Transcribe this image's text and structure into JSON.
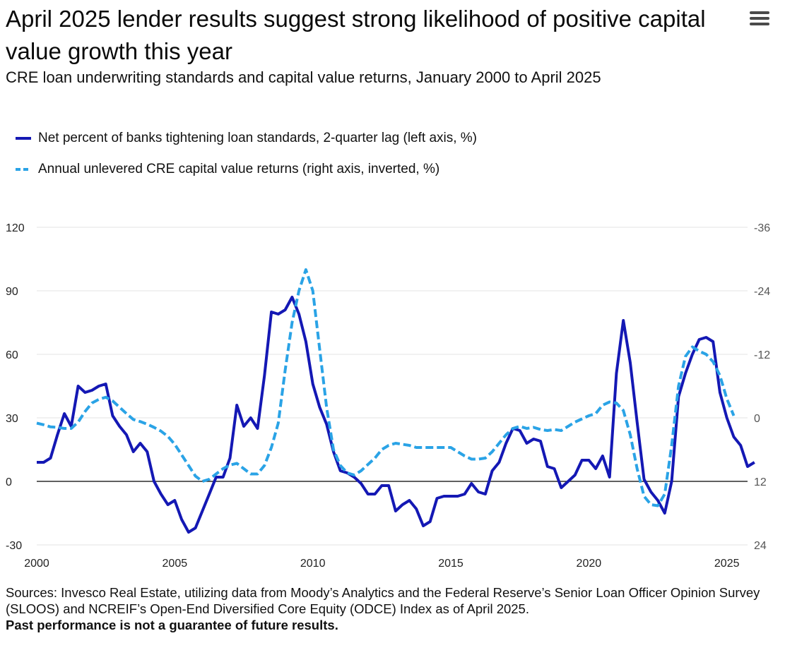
{
  "header": {
    "title": "April 2025 lender results suggest strong likelihood of positive capital value growth this year",
    "subtitle": "CRE loan underwriting standards and capital value returns, January 2000 to April 2025",
    "menu_icon": "hamburger-menu-icon"
  },
  "footer": {
    "sources": "Sources: Invesco Real Estate, utilizing data from Moody’s Analytics and the Federal Reserve’s Senior Loan Officer Opinion Survey (SLOOS) and NCREIF’s Open-End Diversified Core Equity (ODCE) Index as of April 2025.",
    "disclaimer": "Past performance is not a guarantee of future results."
  },
  "colors": {
    "series_solid": "#1418b4",
    "series_dashed": "#2aa3e6",
    "grid": "#e3e3e3",
    "zero_line": "#000000",
    "tick_left": "#222222",
    "tick_right": "#555555"
  },
  "chart_data": {
    "type": "line",
    "title": "April 2025 lender results suggest strong likelihood of positive capital value growth this year",
    "subtitle": "CRE loan underwriting standards and capital value returns, January 2000 to April 2025",
    "legend_position": "top-left",
    "grid": true,
    "x_axis": {
      "range": [
        2000,
        2025.75
      ],
      "ticks": [
        2000,
        2005,
        2010,
        2015,
        2020,
        2025
      ],
      "tick_labels": [
        "2000",
        "2005",
        "2010",
        "2015",
        "2020",
        "2025"
      ]
    },
    "y_left": {
      "range": [
        -30,
        120
      ],
      "ticks": [
        -30,
        0,
        30,
        60,
        90,
        120
      ],
      "tick_labels": [
        "-30",
        "0",
        "30",
        "60",
        "90",
        "120"
      ]
    },
    "y_right": {
      "inverted": true,
      "range": [
        24,
        -36
      ],
      "ticks": [
        24,
        12,
        0,
        -12,
        -24,
        -36
      ],
      "tick_labels": [
        "24",
        "12",
        "0",
        "-12",
        "-24",
        "-36"
      ]
    },
    "series": [
      {
        "name": "Net percent of banks tightening loan standards, 2-quarter lag (left axis, %)",
        "axis": "left",
        "style": "solid",
        "points": [
          [
            2000.0,
            9
          ],
          [
            2000.25,
            9
          ],
          [
            2000.5,
            11
          ],
          [
            2000.75,
            22
          ],
          [
            2001.0,
            32
          ],
          [
            2001.25,
            26
          ],
          [
            2001.5,
            45
          ],
          [
            2001.75,
            42
          ],
          [
            2002.0,
            43
          ],
          [
            2002.25,
            45
          ],
          [
            2002.5,
            46
          ],
          [
            2002.75,
            31
          ],
          [
            2003.0,
            26
          ],
          [
            2003.25,
            22
          ],
          [
            2003.5,
            14
          ],
          [
            2003.75,
            18
          ],
          [
            2004.0,
            14
          ],
          [
            2004.25,
            0
          ],
          [
            2004.5,
            -6
          ],
          [
            2004.75,
            -11
          ],
          [
            2005.0,
            -9
          ],
          [
            2005.25,
            -18
          ],
          [
            2005.5,
            -24
          ],
          [
            2005.75,
            -22
          ],
          [
            2006.0,
            -14
          ],
          [
            2006.25,
            -6
          ],
          [
            2006.5,
            2
          ],
          [
            2006.75,
            2
          ],
          [
            2007.0,
            11
          ],
          [
            2007.25,
            36
          ],
          [
            2007.5,
            26
          ],
          [
            2007.75,
            30
          ],
          [
            2008.0,
            25
          ],
          [
            2008.25,
            50
          ],
          [
            2008.5,
            80
          ],
          [
            2008.75,
            79
          ],
          [
            2009.0,
            81
          ],
          [
            2009.25,
            87
          ],
          [
            2009.5,
            79
          ],
          [
            2009.75,
            66
          ],
          [
            2010.0,
            46
          ],
          [
            2010.25,
            35
          ],
          [
            2010.5,
            27
          ],
          [
            2010.75,
            14
          ],
          [
            2011.0,
            5
          ],
          [
            2011.25,
            4
          ],
          [
            2011.5,
            2
          ],
          [
            2011.75,
            -1
          ],
          [
            2012.0,
            -6
          ],
          [
            2012.25,
            -6
          ],
          [
            2012.5,
            -2
          ],
          [
            2012.75,
            -2
          ],
          [
            2013.0,
            -14
          ],
          [
            2013.25,
            -11
          ],
          [
            2013.5,
            -9
          ],
          [
            2013.75,
            -13
          ],
          [
            2014.0,
            -21
          ],
          [
            2014.25,
            -19
          ],
          [
            2014.5,
            -8
          ],
          [
            2014.75,
            -7
          ],
          [
            2015.0,
            -7
          ],
          [
            2015.25,
            -7
          ],
          [
            2015.5,
            -6
          ],
          [
            2015.75,
            -1
          ],
          [
            2016.0,
            -5
          ],
          [
            2016.25,
            -6
          ],
          [
            2016.5,
            5
          ],
          [
            2016.75,
            9
          ],
          [
            2017.0,
            18
          ],
          [
            2017.25,
            25
          ],
          [
            2017.5,
            24
          ],
          [
            2017.75,
            18
          ],
          [
            2018.0,
            20
          ],
          [
            2018.25,
            19
          ],
          [
            2018.5,
            7
          ],
          [
            2018.75,
            6
          ],
          [
            2019.0,
            -3
          ],
          [
            2019.25,
            0
          ],
          [
            2019.5,
            3
          ],
          [
            2019.75,
            10
          ],
          [
            2020.0,
            10
          ],
          [
            2020.25,
            6
          ],
          [
            2020.5,
            12
          ],
          [
            2020.75,
            2
          ],
          [
            2021.0,
            51
          ],
          [
            2021.25,
            76
          ],
          [
            2021.5,
            56
          ],
          [
            2021.75,
            28
          ],
          [
            2022.0,
            1
          ],
          [
            2022.25,
            -5
          ],
          [
            2022.5,
            -9
          ],
          [
            2022.75,
            -15
          ],
          [
            2023.0,
            0
          ],
          [
            2023.25,
            40
          ],
          [
            2023.5,
            51
          ],
          [
            2023.75,
            60
          ],
          [
            2024.0,
            67
          ],
          [
            2024.25,
            68
          ],
          [
            2024.5,
            66
          ],
          [
            2024.75,
            42
          ],
          [
            2025.0,
            30
          ],
          [
            2025.25,
            21
          ],
          [
            2025.5,
            17
          ],
          [
            2025.75,
            7
          ],
          [
            2026.0,
            9
          ]
        ]
      },
      {
        "name": "Annual unlevered CRE capital value returns (right axis, inverted, %)",
        "axis": "right",
        "style": "dashed",
        "points": [
          [
            2000.0,
            1.0
          ],
          [
            2000.25,
            1.3
          ],
          [
            2000.5,
            1.7
          ],
          [
            2000.75,
            1.8
          ],
          [
            2001.0,
            2.0
          ],
          [
            2001.25,
            2.0
          ],
          [
            2001.5,
            0.8
          ],
          [
            2001.75,
            -1.2
          ],
          [
            2002.0,
            -2.8
          ],
          [
            2002.25,
            -3.5
          ],
          [
            2002.5,
            -3.9
          ],
          [
            2002.75,
            -3.2
          ],
          [
            2003.0,
            -2.0
          ],
          [
            2003.25,
            -0.8
          ],
          [
            2003.5,
            0.3
          ],
          [
            2003.75,
            0.7
          ],
          [
            2004.0,
            1.2
          ],
          [
            2004.25,
            1.8
          ],
          [
            2004.5,
            2.5
          ],
          [
            2004.75,
            3.5
          ],
          [
            2005.0,
            5.0
          ],
          [
            2005.25,
            7.0
          ],
          [
            2005.5,
            9.0
          ],
          [
            2005.75,
            11.0
          ],
          [
            2006.0,
            12.0
          ],
          [
            2006.25,
            11.6
          ],
          [
            2006.5,
            10.6
          ],
          [
            2006.75,
            9.6
          ],
          [
            2007.0,
            8.9
          ],
          [
            2007.25,
            8.6
          ],
          [
            2007.5,
            9.6
          ],
          [
            2007.75,
            10.6
          ],
          [
            2008.0,
            10.6
          ],
          [
            2008.25,
            9.0
          ],
          [
            2008.5,
            5.6
          ],
          [
            2008.75,
            1.0
          ],
          [
            2009.0,
            -9.0
          ],
          [
            2009.25,
            -18.0
          ],
          [
            2009.5,
            -24.0
          ],
          [
            2009.75,
            -28.0
          ],
          [
            2010.0,
            -24.0
          ],
          [
            2010.25,
            -13.0
          ],
          [
            2010.5,
            -2.0
          ],
          [
            2010.75,
            6.0
          ],
          [
            2011.0,
            9.0
          ],
          [
            2011.25,
            10.4
          ],
          [
            2011.5,
            10.8
          ],
          [
            2011.75,
            10.0
          ],
          [
            2012.0,
            8.8
          ],
          [
            2012.25,
            7.6
          ],
          [
            2012.5,
            6.0
          ],
          [
            2012.75,
            5.2
          ],
          [
            2013.0,
            4.8
          ],
          [
            2013.25,
            5.0
          ],
          [
            2013.5,
            5.2
          ],
          [
            2013.75,
            5.6
          ],
          [
            2014.0,
            5.6
          ],
          [
            2014.25,
            5.6
          ],
          [
            2014.5,
            5.6
          ],
          [
            2014.75,
            5.6
          ],
          [
            2015.0,
            5.6
          ],
          [
            2015.25,
            6.4
          ],
          [
            2015.5,
            7.2
          ],
          [
            2015.75,
            7.8
          ],
          [
            2016.0,
            7.8
          ],
          [
            2016.25,
            7.6
          ],
          [
            2016.5,
            6.4
          ],
          [
            2016.75,
            4.8
          ],
          [
            2017.0,
            3.2
          ],
          [
            2017.25,
            2.0
          ],
          [
            2017.5,
            1.6
          ],
          [
            2017.75,
            2.0
          ],
          [
            2018.0,
            1.8
          ],
          [
            2018.25,
            2.2
          ],
          [
            2018.5,
            2.4
          ],
          [
            2018.75,
            2.2
          ],
          [
            2019.0,
            2.4
          ],
          [
            2019.25,
            1.6
          ],
          [
            2019.5,
            0.8
          ],
          [
            2019.75,
            0.2
          ],
          [
            2020.0,
            -0.4
          ],
          [
            2020.25,
            -0.8
          ],
          [
            2020.5,
            -2.4
          ],
          [
            2020.75,
            -3.0
          ],
          [
            2021.0,
            -2.8
          ],
          [
            2021.25,
            -1.4
          ],
          [
            2021.5,
            3.2
          ],
          [
            2021.75,
            9.6
          ],
          [
            2022.0,
            14.8
          ],
          [
            2022.25,
            16.4
          ],
          [
            2022.5,
            16.6
          ],
          [
            2022.75,
            14.4
          ],
          [
            2023.0,
            5.2
          ],
          [
            2023.25,
            -6.0
          ],
          [
            2023.5,
            -11.6
          ],
          [
            2023.75,
            -13.4
          ],
          [
            2024.0,
            -12.6
          ],
          [
            2024.25,
            -12.0
          ],
          [
            2024.5,
            -10.6
          ],
          [
            2024.75,
            -8.0
          ],
          [
            2025.0,
            -3.6
          ],
          [
            2025.25,
            -0.4
          ]
        ]
      }
    ]
  }
}
